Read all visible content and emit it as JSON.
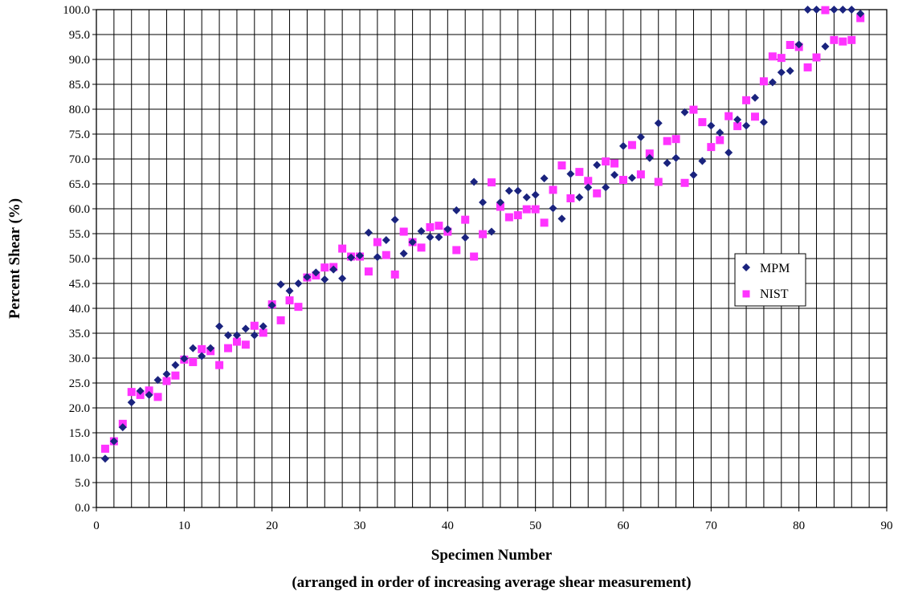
{
  "chart_data": {
    "type": "scatter",
    "title": "",
    "xlabel": "Specimen Number",
    "xlabel_note": "(arranged in order of increasing average shear measurement)",
    "ylabel": "Percent Shear (%)",
    "xlim": [
      0,
      90
    ],
    "ylim": [
      0,
      100
    ],
    "x_ticks": [
      "0",
      "10",
      "20",
      "30",
      "40",
      "50",
      "60",
      "70",
      "80",
      "90"
    ],
    "y_ticks": [
      "0.0",
      "5.0",
      "10.0",
      "15.0",
      "20.0",
      "25.0",
      "30.0",
      "35.0",
      "40.0",
      "45.0",
      "50.0",
      "55.0",
      "60.0",
      "65.0",
      "70.0",
      "75.0",
      "80.0",
      "85.0",
      "90.0",
      "95.0",
      "100.0"
    ],
    "grid": true,
    "legend_position": "right",
    "series": [
      {
        "name": "MPM",
        "marker": "diamond",
        "color": "#1a237e",
        "x": [
          1,
          2,
          3,
          4,
          5,
          6,
          7,
          8,
          9,
          10,
          11,
          12,
          13,
          14,
          15,
          16,
          17,
          18,
          19,
          20,
          21,
          22,
          23,
          24,
          25,
          26,
          27,
          28,
          29,
          30,
          31,
          32,
          33,
          34,
          35,
          36,
          37,
          38,
          39,
          40,
          41,
          42,
          43,
          44,
          45,
          46,
          47,
          48,
          49,
          50,
          51,
          52,
          53,
          54,
          55,
          56,
          57,
          58,
          59,
          60,
          61,
          62,
          63,
          64,
          65,
          66,
          67,
          68,
          69,
          70,
          71,
          72,
          73,
          74,
          75,
          76,
          77,
          78,
          79,
          80,
          81,
          82,
          83,
          84,
          85,
          86,
          87
        ],
        "y": [
          9.8,
          13.3,
          16.1,
          21.1,
          23.4,
          22.6,
          25.6,
          26.8,
          28.6,
          29.9,
          32.0,
          30.4,
          32.0,
          36.4,
          34.6,
          34.6,
          35.9,
          34.6,
          36.4,
          40.6,
          44.8,
          43.5,
          45.0,
          46.3,
          47.2,
          45.8,
          47.8,
          46.0,
          50.2,
          50.6,
          55.2,
          50.3,
          53.7,
          57.8,
          51.0,
          53.3,
          55.5,
          54.3,
          54.3,
          55.9,
          59.7,
          54.2,
          65.4,
          61.3,
          55.4,
          61.3,
          63.6,
          63.6,
          62.3,
          62.8,
          66.1,
          60.1,
          58.0,
          67.0,
          62.3,
          64.3,
          68.8,
          64.3,
          66.8,
          72.6,
          66.2,
          74.4,
          70.2,
          77.2,
          69.2,
          70.2,
          79.4,
          66.8,
          69.6,
          76.7,
          75.3,
          71.3,
          77.9,
          76.7,
          82.3,
          77.4,
          85.4,
          87.4,
          87.7,
          93.0,
          100.0,
          100.0,
          92.6,
          100.0,
          100.0,
          100.0,
          99.2
        ]
      },
      {
        "name": "NIST",
        "marker": "square",
        "color": "#ff33ff",
        "x": [
          1,
          2,
          3,
          4,
          5,
          6,
          7,
          8,
          9,
          10,
          11,
          12,
          13,
          14,
          15,
          16,
          17,
          18,
          19,
          20,
          21,
          22,
          23,
          24,
          25,
          26,
          27,
          28,
          29,
          30,
          31,
          32,
          33,
          34,
          35,
          36,
          37,
          38,
          39,
          40,
          41,
          42,
          43,
          44,
          45,
          46,
          47,
          48,
          49,
          50,
          51,
          52,
          53,
          54,
          55,
          56,
          57,
          58,
          59,
          60,
          61,
          62,
          63,
          64,
          65,
          66,
          67,
          68,
          69,
          70,
          71,
          72,
          73,
          74,
          75,
          76,
          77,
          78,
          79,
          80,
          81,
          82,
          83,
          84,
          85,
          86,
          87
        ],
        "y": [
          11.8,
          13.3,
          16.8,
          23.2,
          22.6,
          23.5,
          22.2,
          25.4,
          26.5,
          29.7,
          29.2,
          31.8,
          31.4,
          28.6,
          32.0,
          33.3,
          32.7,
          36.5,
          35.1,
          40.8,
          37.6,
          41.6,
          40.3,
          46.2,
          46.6,
          48.2,
          48.3,
          52.0,
          50.4,
          50.4,
          47.4,
          53.3,
          50.7,
          46.8,
          55.4,
          53.3,
          52.2,
          56.3,
          56.6,
          55.4,
          51.7,
          57.8,
          50.4,
          54.9,
          65.3,
          60.4,
          58.3,
          58.7,
          59.9,
          59.9,
          57.2,
          63.8,
          68.7,
          62.1,
          67.4,
          65.6,
          63.1,
          69.5,
          69.1,
          65.8,
          72.8,
          66.9,
          71.1,
          65.4,
          73.6,
          74.0,
          65.2,
          79.9,
          77.4,
          72.4,
          73.8,
          78.6,
          76.6,
          81.8,
          78.5,
          85.6,
          90.6,
          90.3,
          92.9,
          92.5,
          88.4,
          90.4,
          99.9,
          93.9,
          93.6,
          93.9,
          98.3
        ]
      }
    ]
  }
}
